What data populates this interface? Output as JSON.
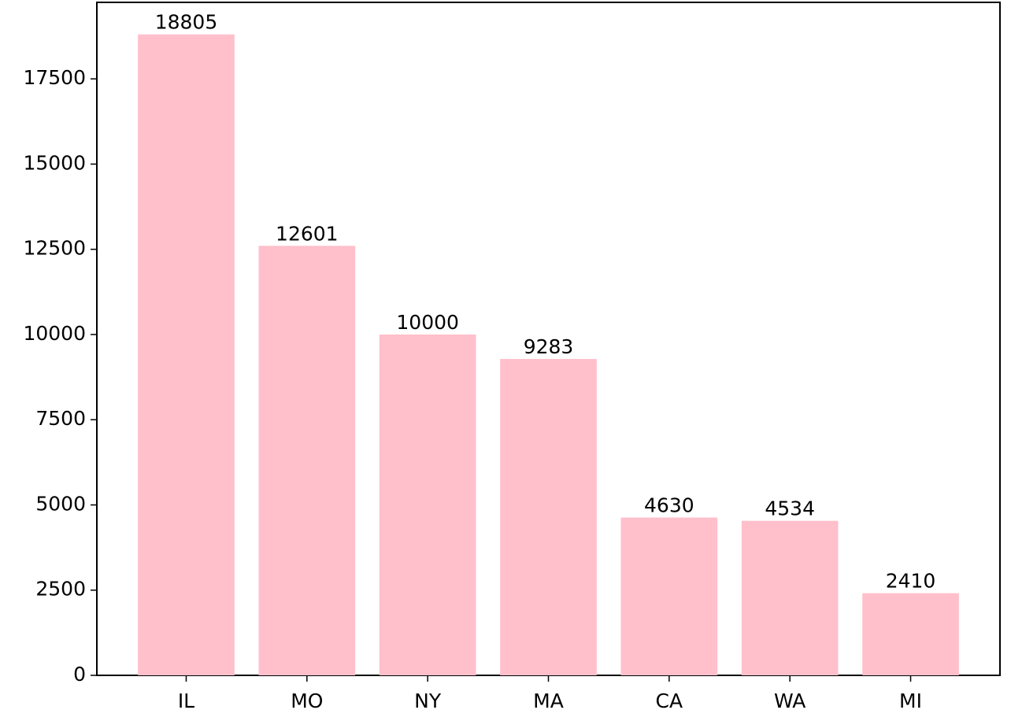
{
  "chart_data": {
    "type": "bar",
    "categories": [
      "IL",
      "MO",
      "NY",
      "MA",
      "CA",
      "WA",
      "MI"
    ],
    "values": [
      18805,
      12601,
      10000,
      9283,
      4630,
      4534,
      2410
    ],
    "color": "#ffc0cb",
    "ylim": [
      0,
      19745
    ],
    "yticks": [
      0,
      2500,
      5000,
      7500,
      10000,
      12500,
      15000,
      17500
    ],
    "grid": false
  }
}
